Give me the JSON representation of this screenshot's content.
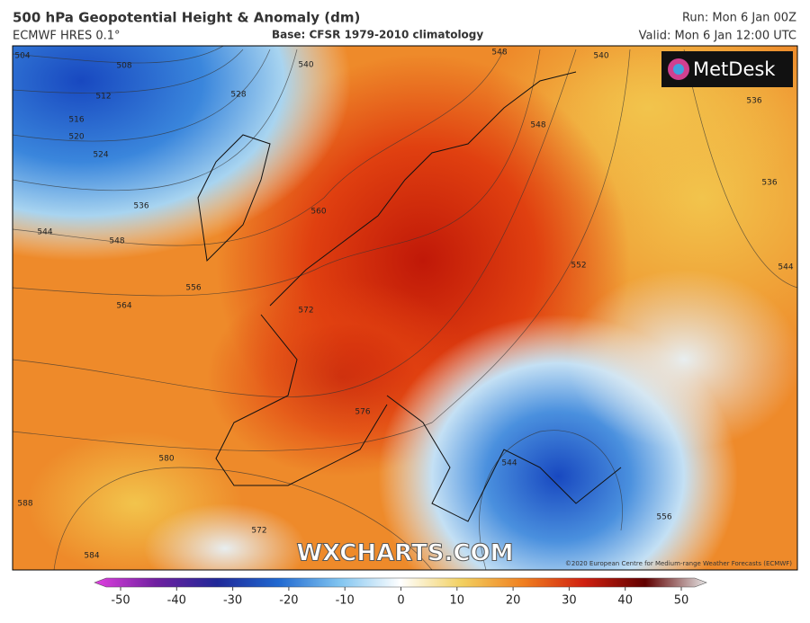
{
  "header": {
    "title": "500 hPa Geopotential Height & Anomaly (dm)",
    "model": "ECMWF HRES 0.1°",
    "base": "Base: CFSR 1979-2010 climatology",
    "run": "Run: Mon 6 Jan 00Z",
    "valid": "Valid: Mon 6 Jan 12:00 UTC"
  },
  "logo": "MetDesk",
  "watermark": "WXCHARTS.COM",
  "copyright": "©2020 European Centre for Medium-range Weather Forecasts (ECMWF)",
  "contour_labels": [
    504,
    508,
    512,
    516,
    520,
    524,
    528,
    540,
    536,
    544,
    548,
    556,
    564,
    572,
    560,
    576,
    580,
    588,
    584,
    572,
    552,
    544,
    536,
    536,
    544,
    548,
    540,
    548,
    556
  ],
  "colorbar": {
    "lim": [
      -50,
      50
    ],
    "ticks": [
      -50,
      -40,
      -30,
      -20,
      -10,
      0,
      10,
      20,
      30,
      40,
      50
    ]
  }
}
